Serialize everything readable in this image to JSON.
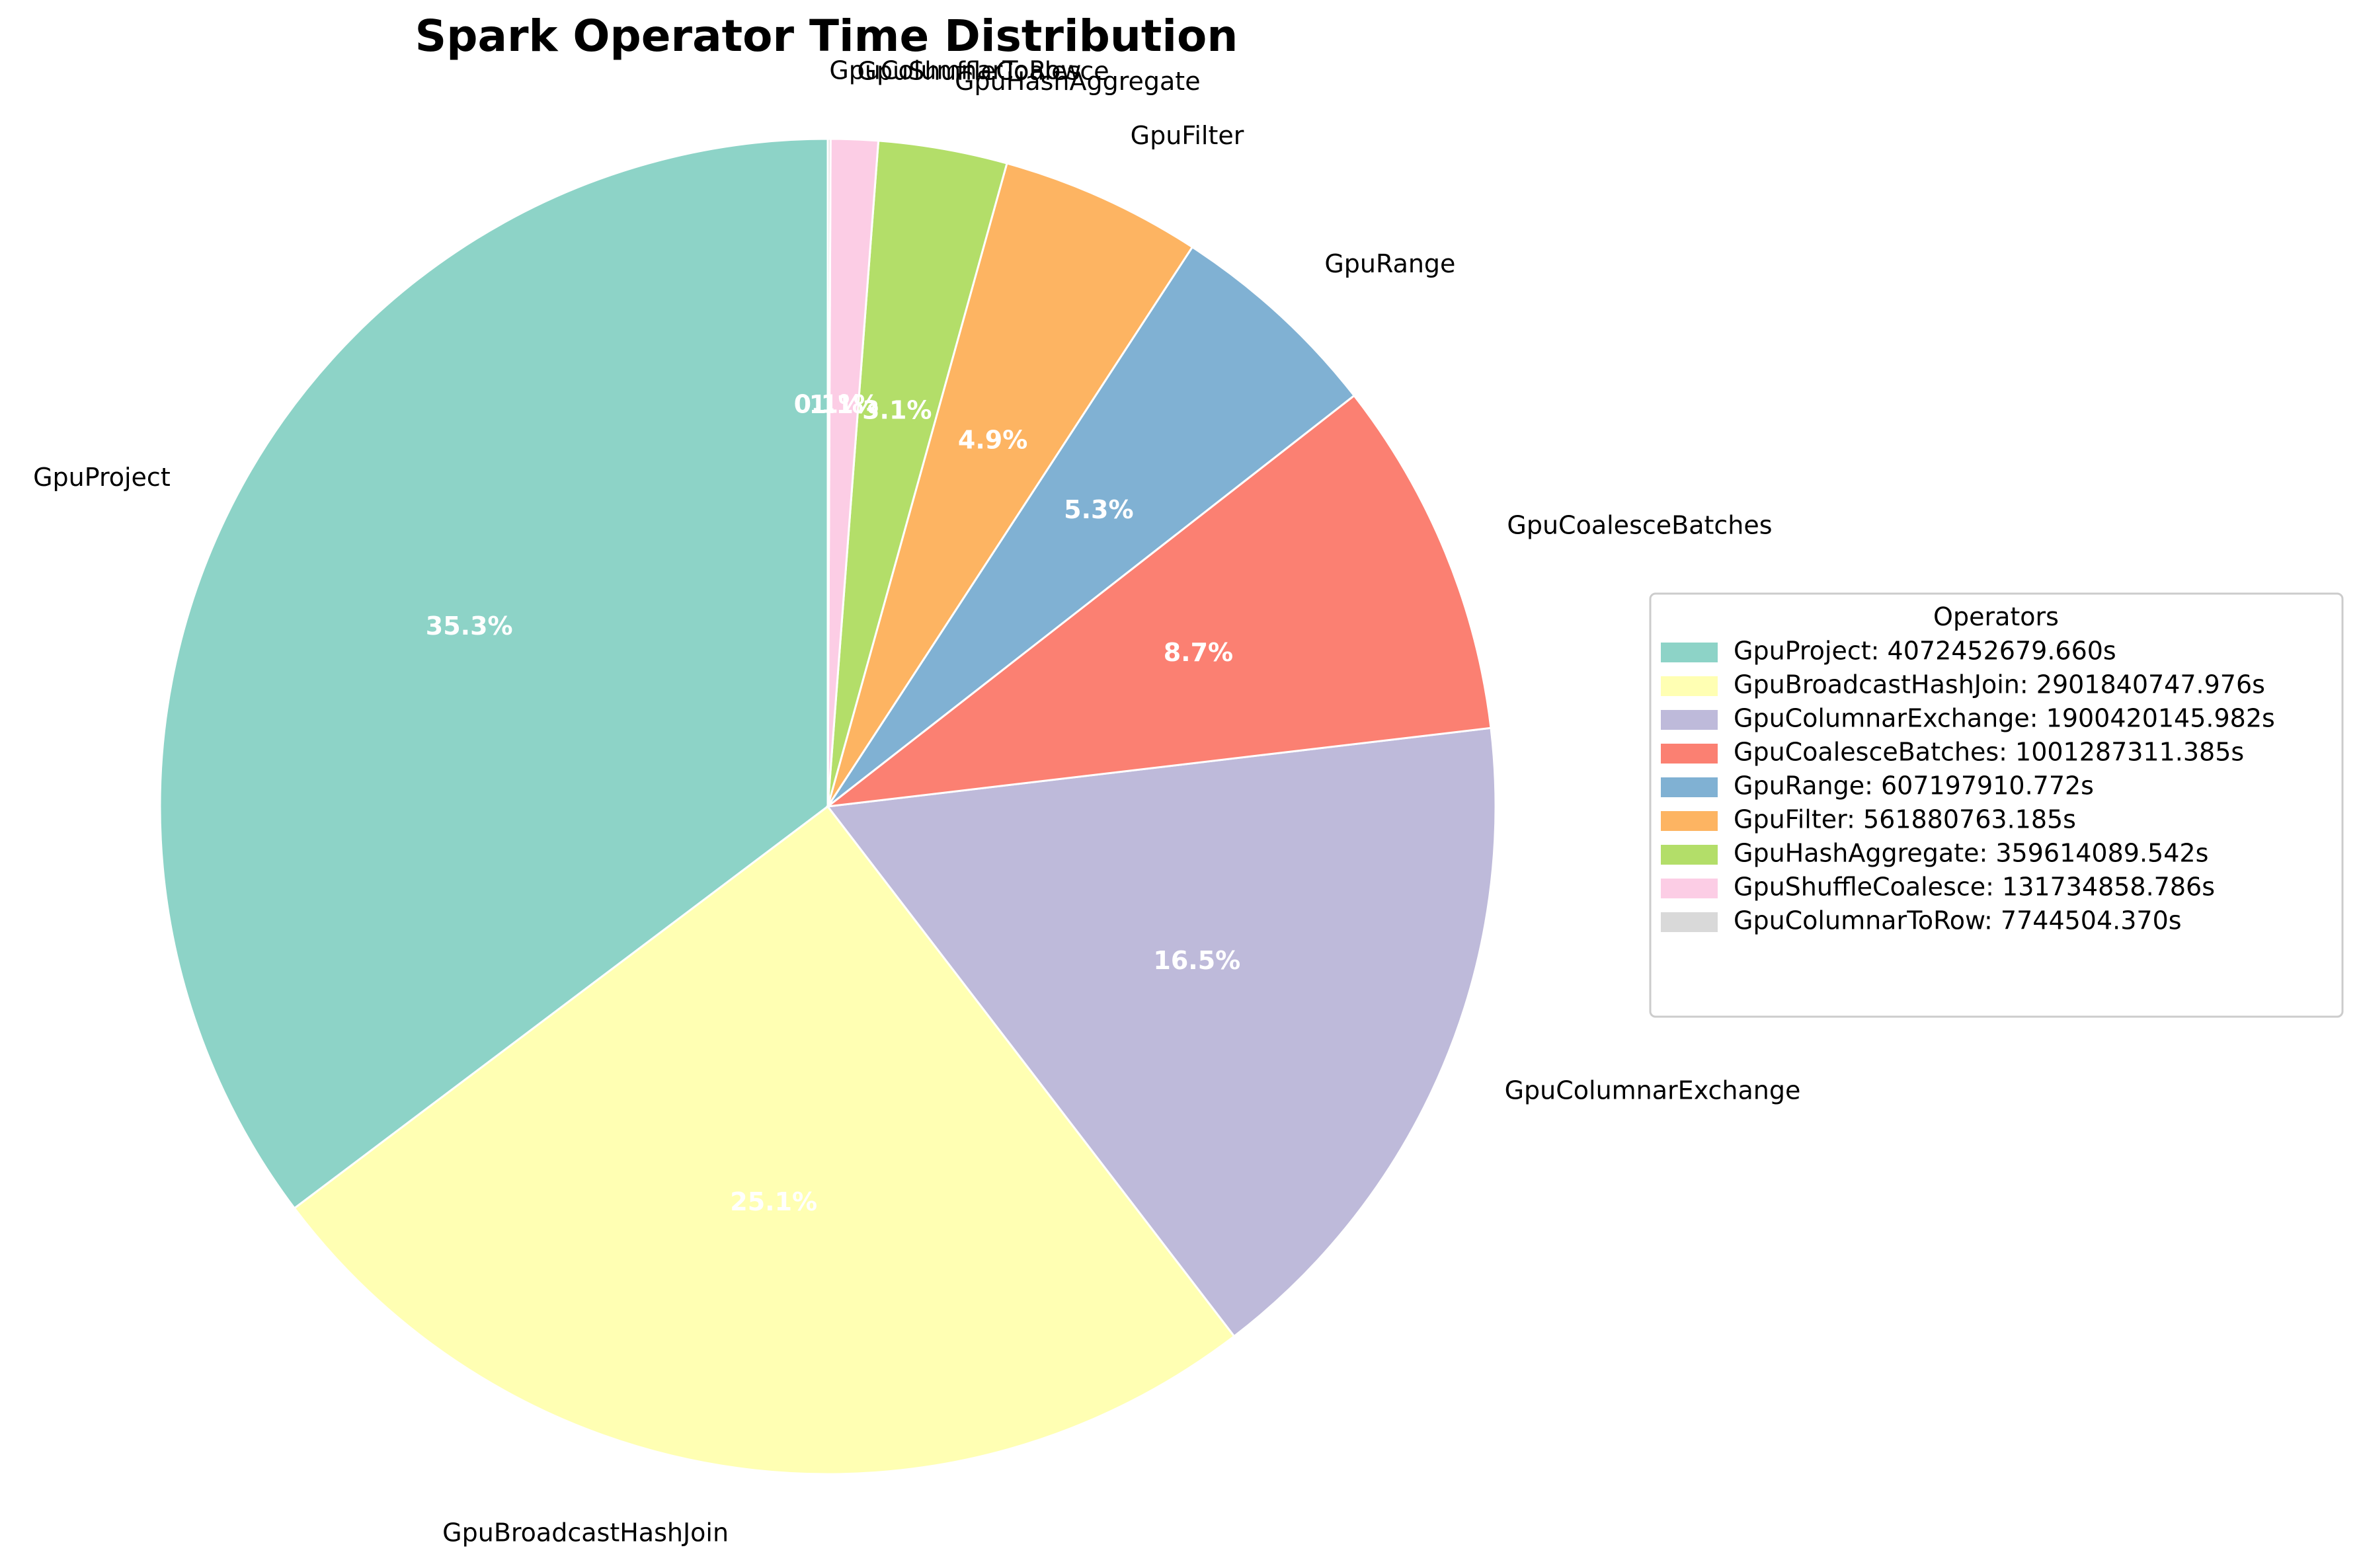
{
  "chart_data": {
    "type": "pie",
    "title": "Spark Operator Time Distribution",
    "start_angle_deg": 90,
    "direction": "counterclockwise",
    "legend": {
      "title": "Operators",
      "placement": "center-right",
      "entries": [
        "GpuProject: 4072452679.660s",
        "GpuBroadcastHashJoin: 2901840747.976s",
        "GpuColumnarExchange: 1900420145.982s",
        "GpuCoalesceBatches: 1001287311.385s",
        "GpuRange: 607197910.772s",
        "GpuFilter: 561880763.185s",
        "GpuHashAggregate: 359614089.542s",
        "GpuShuffleCoalesce: 131734858.786s",
        "GpuColumnarToRow: 7744504.370s"
      ]
    },
    "slices": [
      {
        "label": "GpuProject",
        "value": 4072452679.66,
        "pct_label": "35.3%",
        "color": "#8dd3c7"
      },
      {
        "label": "GpuBroadcastHashJoin",
        "value": 2901840747.976,
        "pct_label": "25.1%",
        "color": "#ffffb3"
      },
      {
        "label": "GpuColumnarExchange",
        "value": 1900420145.982,
        "pct_label": "16.5%",
        "color": "#bebada"
      },
      {
        "label": "GpuCoalesceBatches",
        "value": 1001287311.385,
        "pct_label": "8.7%",
        "color": "#fb8072"
      },
      {
        "label": "GpuRange",
        "value": 607197910.772,
        "pct_label": "5.3%",
        "color": "#80b1d3"
      },
      {
        "label": "GpuFilter",
        "value": 561880763.185,
        "pct_label": "4.9%",
        "color": "#fdb462"
      },
      {
        "label": "GpuHashAggregate",
        "value": 359614089.542,
        "pct_label": "3.1%",
        "color": "#b3de69"
      },
      {
        "label": "GpuShuffleCoalesce",
        "value": 131734858.786,
        "pct_label": "1.1%",
        "color": "#fccde5"
      },
      {
        "label": "GpuColumnarToRow",
        "value": 7744504.37,
        "pct_label": "0.1%",
        "color": "#d9d9d9"
      }
    ]
  }
}
